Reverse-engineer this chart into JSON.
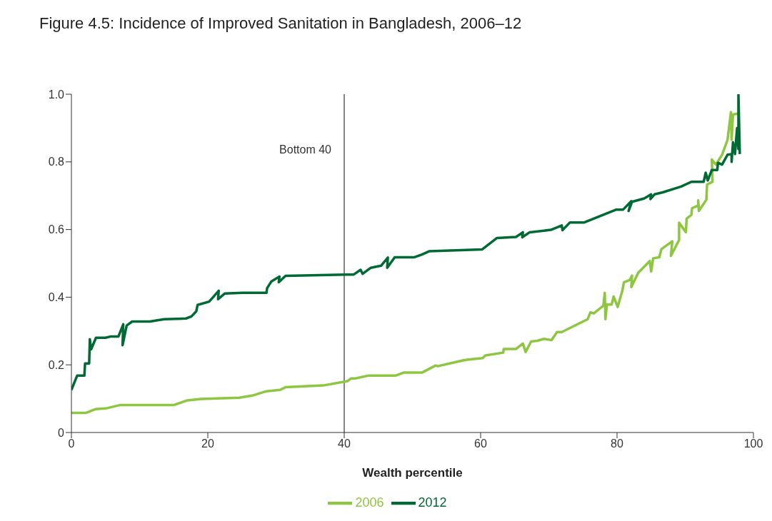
{
  "chart_data": {
    "type": "line",
    "title": "Figure 4.5: Incidence of Improved Sanitation in Bangladesh, 2006–12",
    "xlabel": "Wealth percentile",
    "xlim": [
      0,
      100
    ],
    "xticks": [
      0,
      20,
      40,
      60,
      80,
      100
    ],
    "ylim": [
      0,
      1
    ],
    "yticks": [
      0,
      0.2,
      0.4,
      0.6,
      0.8,
      {
        "value": 1,
        "label": "1.0"
      }
    ],
    "grid": false,
    "legend": "bottom",
    "marker": "none",
    "line_style": "solid",
    "ref_lines": [
      {
        "axis": "x",
        "value": 40,
        "label": "Bottom 40",
        "color": "#333333"
      }
    ],
    "series": [
      {
        "name": "2006",
        "color": "#8dc63f",
        "x": [
          0,
          2.1,
          3.5,
          5.0,
          7.1,
          15.0,
          17.0,
          19.0,
          24.6,
          26.5,
          28.6,
          30.6,
          31.4,
          36.9,
          40.5,
          41.0,
          41.7,
          43.5,
          47.5,
          48.7,
          51.4,
          53.4,
          53.7,
          57.4,
          58.0,
          60.3,
          60.7,
          63.3,
          63.4,
          65.2,
          66.2,
          66.6,
          67.4,
          68.3,
          69.3,
          70.4,
          71.2,
          71.9,
          75.7,
          76.1,
          76.6,
          78.0,
          78.2,
          78.3,
          78.5,
          79.2,
          79.5,
          80.1,
          80.8,
          81.0,
          81.9,
          82.2,
          82.1,
          83.1,
          84.8,
          85.0,
          85.3,
          86.2,
          86.5,
          88.1,
          87.9,
          89.1,
          89.1,
          90.1,
          90.2,
          90.9,
          91.0,
          91.9,
          91.9,
          92.0,
          93.1,
          93.2,
          94.0,
          93.9,
          94.5,
          95.4,
          96.2,
          96.7,
          96.8,
          97.0,
          97.8
        ],
        "values": [
          0.058,
          0.058,
          0.069,
          0.071,
          0.081,
          0.081,
          0.095,
          0.099,
          0.103,
          0.109,
          0.122,
          0.126,
          0.134,
          0.139,
          0.152,
          0.16,
          0.16,
          0.168,
          0.168,
          0.177,
          0.177,
          0.198,
          0.196,
          0.213,
          0.215,
          0.22,
          0.228,
          0.236,
          0.247,
          0.247,
          0.263,
          0.238,
          0.269,
          0.271,
          0.277,
          0.273,
          0.297,
          0.297,
          0.335,
          0.355,
          0.352,
          0.375,
          0.413,
          0.335,
          0.378,
          0.378,
          0.402,
          0.371,
          0.421,
          0.444,
          0.451,
          0.464,
          0.43,
          0.472,
          0.507,
          0.476,
          0.515,
          0.518,
          0.542,
          0.565,
          0.522,
          0.569,
          0.62,
          0.592,
          0.632,
          0.643,
          0.663,
          0.671,
          0.686,
          0.655,
          0.688,
          0.733,
          0.741,
          0.807,
          0.792,
          0.821,
          0.865,
          0.947,
          0.865,
          0.94,
          0.943
        ]
      },
      {
        "name": "2012",
        "color": "#006a35",
        "x": [
          0,
          0.84,
          1.9,
          2.0,
          2.6,
          2.7,
          2.9,
          3.6,
          5.0,
          5.8,
          6.9,
          7.6,
          7.5,
          8.1,
          8.9,
          11.5,
          13.6,
          16.8,
          17.6,
          18.3,
          18.5,
          20.2,
          21.6,
          21.5,
          22.5,
          25.1,
          28.6,
          28.7,
          29.3,
          30.5,
          30.4,
          31.4,
          40.2,
          41.4,
          42.4,
          42.7,
          43.9,
          45.4,
          46.4,
          46.3,
          47.4,
          50.3,
          51.4,
          52.5,
          60.2,
          62.4,
          65.2,
          66.2,
          66.1,
          67.2,
          70.3,
          71.9,
          72.0,
          73.1,
          75.2,
          79.9,
          80.9,
          82.1,
          81.7,
          82.2,
          84.0,
          85.0,
          84.9,
          85.5,
          86.7,
          89.4,
          90.9,
          92.7,
          93.0,
          93.3,
          93.9,
          94.7,
          94.8,
          95.4,
          96.2,
          96.8,
          96.8,
          97.0,
          97.3,
          97.6,
          97.8,
          97.8,
          98.0
        ],
        "values": [
          0.126,
          0.168,
          0.168,
          0.204,
          0.204,
          0.276,
          0.246,
          0.28,
          0.28,
          0.284,
          0.284,
          0.32,
          0.258,
          0.316,
          0.328,
          0.328,
          0.335,
          0.337,
          0.343,
          0.358,
          0.377,
          0.387,
          0.419,
          0.394,
          0.411,
          0.413,
          0.413,
          0.427,
          0.446,
          0.461,
          0.444,
          0.463,
          0.467,
          0.467,
          0.481,
          0.469,
          0.487,
          0.493,
          0.517,
          0.487,
          0.518,
          0.518,
          0.526,
          0.536,
          0.541,
          0.575,
          0.578,
          0.592,
          0.577,
          0.592,
          0.599,
          0.612,
          0.598,
          0.621,
          0.621,
          0.659,
          0.659,
          0.684,
          0.655,
          0.682,
          0.692,
          0.704,
          0.69,
          0.704,
          0.71,
          0.727,
          0.741,
          0.741,
          0.768,
          0.745,
          0.776,
          0.776,
          0.797,
          0.792,
          0.821,
          0.823,
          0.8,
          0.858,
          0.823,
          0.9,
          0.838,
          1.0,
          0.823
        ]
      }
    ]
  }
}
